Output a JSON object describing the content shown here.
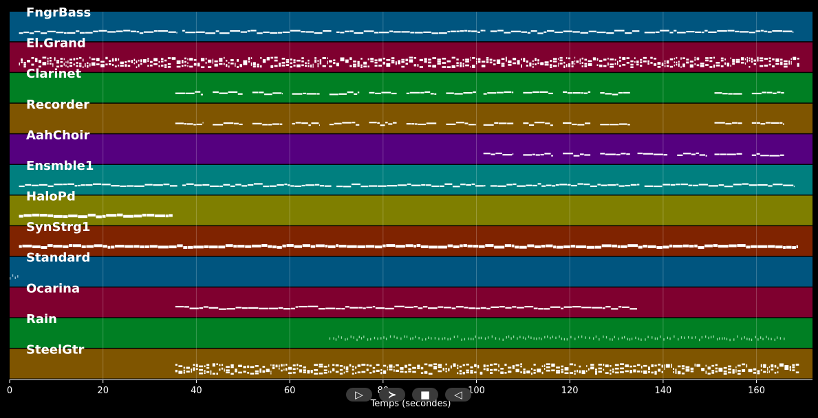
{
  "chart_data": {
    "type": "piano-roll",
    "xlabel": "Temps (secondes)",
    "xlim": [
      0,
      172
    ],
    "xticks": [
      0,
      20,
      40,
      60,
      80,
      100,
      120,
      140,
      160
    ],
    "grid": true,
    "tracks": [
      {
        "name": "FngrBass",
        "color": "#00557f",
        "note_color": "#ffffff",
        "style": "line",
        "segments": [
          [
            2,
            36
          ],
          [
            37,
            69
          ],
          [
            70,
            102
          ],
          [
            103,
            135
          ],
          [
            136,
            168
          ]
        ]
      },
      {
        "name": "El.Grand",
        "color": "#7f002f",
        "note_color": "#ffffff",
        "style": "dense",
        "segments": [
          [
            2,
            169
          ]
        ]
      },
      {
        "name": "Clarinet",
        "color": "#007f23",
        "note_color": "#ffffff",
        "style": "phrases",
        "segments": [
          [
            35.5,
            41.5
          ],
          [
            43.5,
            50
          ],
          [
            52,
            58.5
          ],
          [
            60.5,
            66.5
          ],
          [
            68.5,
            75
          ],
          [
            77,
            83
          ],
          [
            85,
            91.5
          ],
          [
            93.5,
            100
          ],
          [
            101.5,
            108
          ],
          [
            110,
            116.5
          ],
          [
            118.5,
            124.5
          ],
          [
            126.5,
            133
          ],
          [
            151,
            157
          ],
          [
            159,
            166
          ]
        ]
      },
      {
        "name": "Recorder",
        "color": "#7f5500",
        "note_color": "#ffffff",
        "style": "phrases",
        "segments": [
          [
            35.5,
            41.5
          ],
          [
            43.5,
            50
          ],
          [
            52,
            58.5
          ],
          [
            60.5,
            66.5
          ],
          [
            68.5,
            75
          ],
          [
            77,
            83
          ],
          [
            85,
            91.5
          ],
          [
            93.5,
            100
          ],
          [
            101.5,
            108
          ],
          [
            110,
            116.5
          ],
          [
            118.5,
            124.5
          ],
          [
            126.5,
            133
          ],
          [
            151,
            157
          ],
          [
            159,
            166
          ]
        ]
      },
      {
        "name": "AahChoir",
        "color": "#55007f",
        "note_color": "#ffffff",
        "style": "phrases",
        "segments": [
          [
            101.5,
            108
          ],
          [
            110,
            116.5
          ],
          [
            118.5,
            124.5
          ],
          [
            126.5,
            133
          ],
          [
            134.5,
            141
          ],
          [
            143,
            149.5
          ],
          [
            151,
            157
          ],
          [
            159,
            166
          ]
        ]
      },
      {
        "name": "Ensmble1",
        "color": "#007f7f",
        "note_color": "#ffffff",
        "style": "line",
        "segments": [
          [
            2,
            36
          ],
          [
            37,
            69
          ],
          [
            70,
            102
          ],
          [
            103,
            135
          ],
          [
            136,
            168
          ]
        ]
      },
      {
        "name": "HaloPd",
        "color": "#7f7f00",
        "note_color": "#ffffff",
        "style": "thick",
        "segments": [
          [
            2,
            35
          ]
        ]
      },
      {
        "name": "SynStrg1",
        "color": "#7f2300",
        "note_color": "#ffffff",
        "style": "thick",
        "segments": [
          [
            2,
            169
          ]
        ]
      },
      {
        "name": "Standard",
        "color": "#00557f",
        "note_color": "#aaccdd",
        "style": "ticks",
        "segments": [
          [
            0,
            1.8
          ]
        ]
      },
      {
        "name": "Ocarina",
        "color": "#7f002f",
        "note_color": "#ffffff",
        "style": "line",
        "segments": [
          [
            35.5,
            134.5
          ]
        ]
      },
      {
        "name": "Rain",
        "color": "#007f23",
        "note_color": "#9fdcae",
        "style": "ticks",
        "segments": [
          [
            68.5,
            166
          ]
        ]
      },
      {
        "name": "SteelGtr",
        "color": "#7f5500",
        "note_color": "#ffffff",
        "style": "dense",
        "segments": [
          [
            35.5,
            169
          ]
        ]
      }
    ]
  },
  "controls": {
    "play_glyph": "▷",
    "forward_glyph": "≻",
    "stop_glyph": "■",
    "rewind_glyph": "◁"
  }
}
